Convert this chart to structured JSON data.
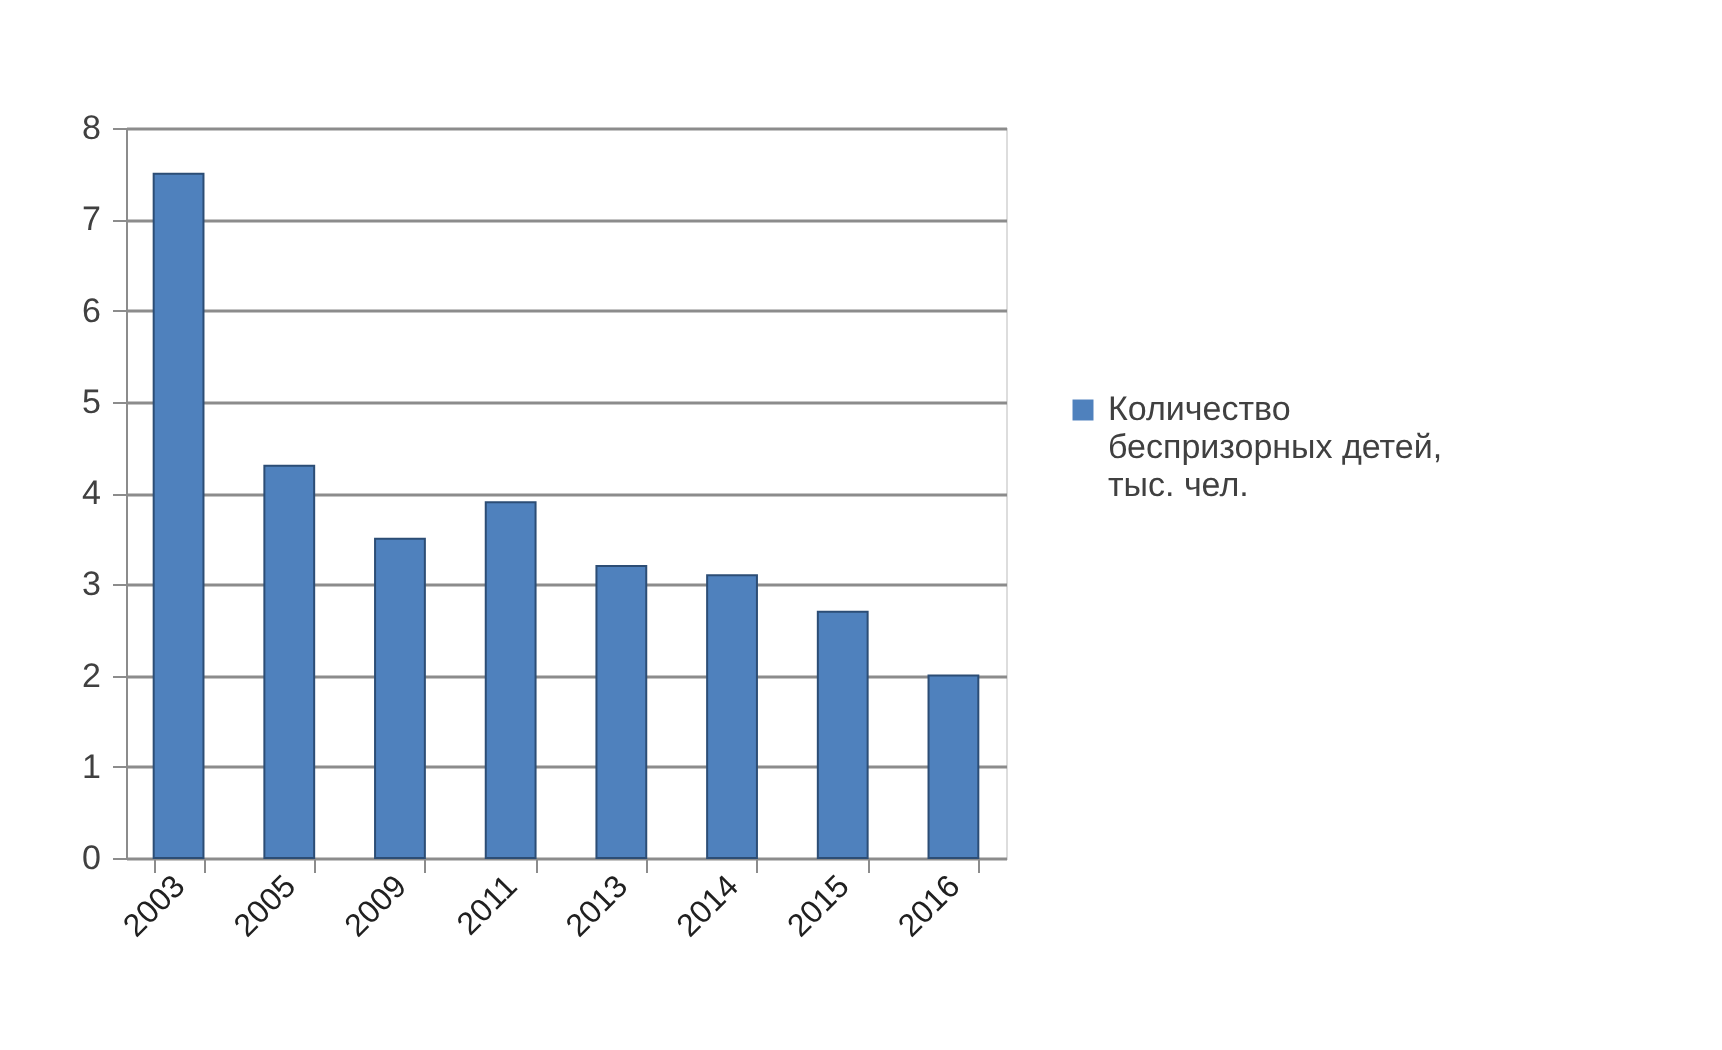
{
  "chart_data": {
    "type": "bar",
    "categories": [
      "2003",
      "2005",
      "2009",
      "2011",
      "2013",
      "2014",
      "2015",
      "2016"
    ],
    "series": [
      {
        "name": "Количество беспризорных детей, тыс. чел.",
        "color": "#4f81bd",
        "values": [
          7.5,
          4.3,
          3.5,
          3.9,
          3.2,
          3.1,
          2.7,
          2.0
        ]
      }
    ],
    "ylim": [
      0,
      8
    ],
    "yticks": [
      0,
      1,
      2,
      3,
      4,
      5,
      6,
      7,
      8
    ],
    "grid": "y",
    "legend": "right"
  }
}
